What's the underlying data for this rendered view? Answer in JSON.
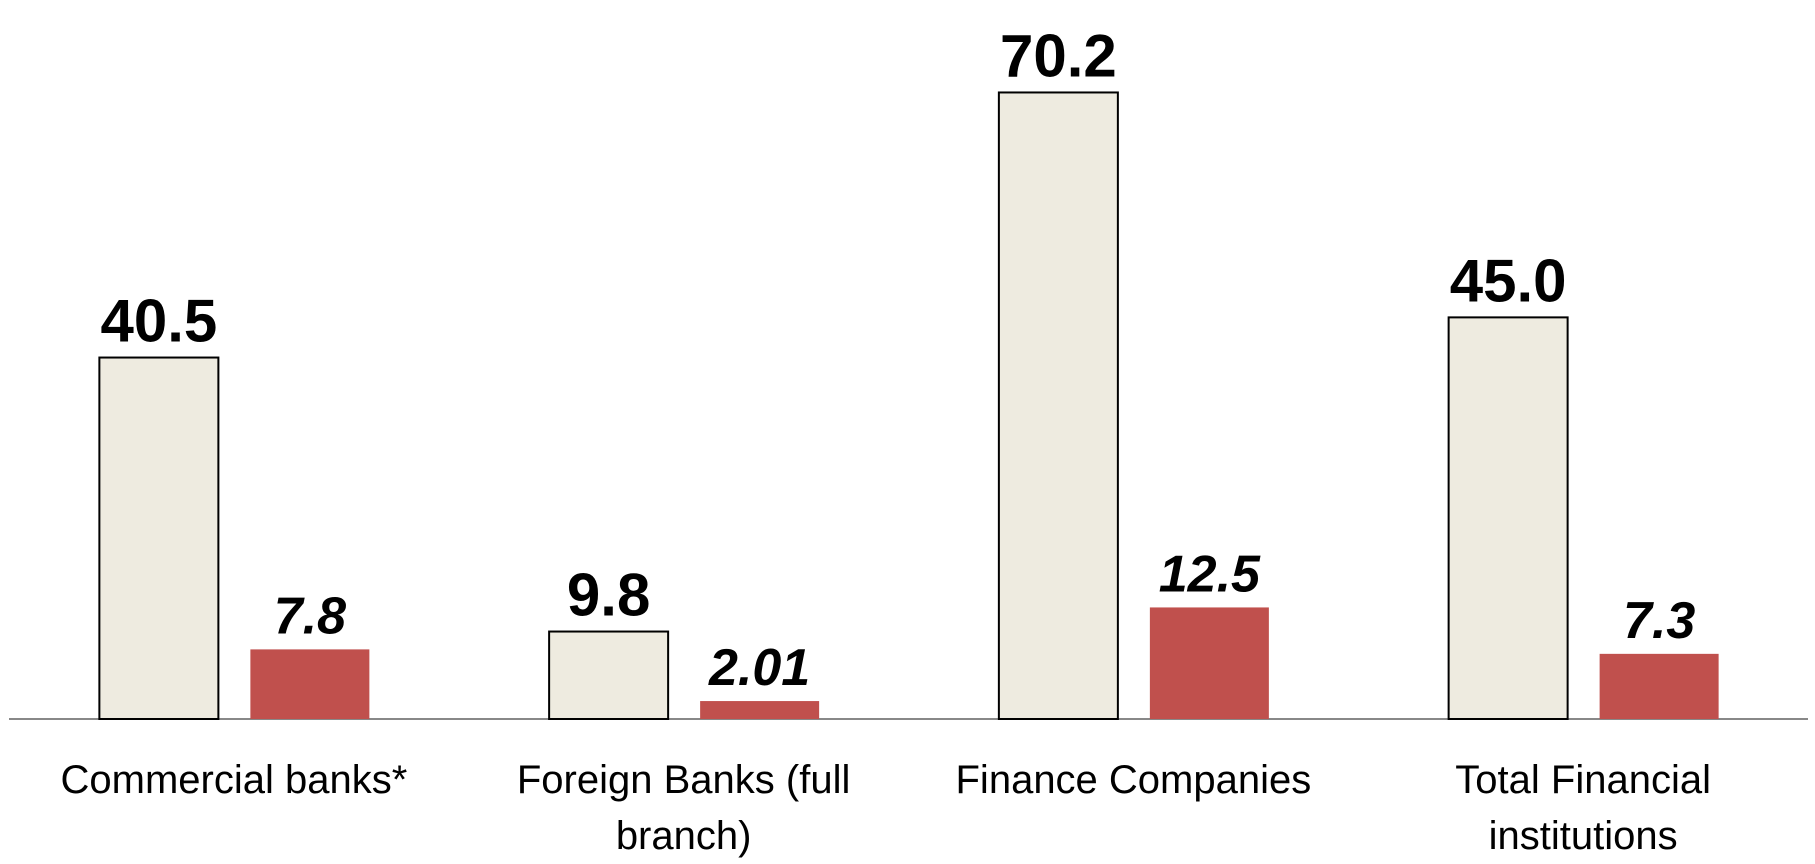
{
  "chart_data": {
    "type": "bar",
    "categories": [
      "Commercial banks*",
      "Foreign Banks (full branch)",
      "Finance Companies",
      "Total Financial institutions"
    ],
    "series": [
      {
        "color": "#eeebe0",
        "values": [
          40.5,
          9.8,
          70.2,
          45.0
        ],
        "value_labels": [
          "40.5",
          "9.8",
          "70.2",
          "45.0"
        ]
      },
      {
        "color": "#c0504d",
        "values": [
          7.8,
          2.01,
          12.5,
          7.3
        ]
      }
    ],
    "ylim": [
      0,
      80
    ]
  }
}
